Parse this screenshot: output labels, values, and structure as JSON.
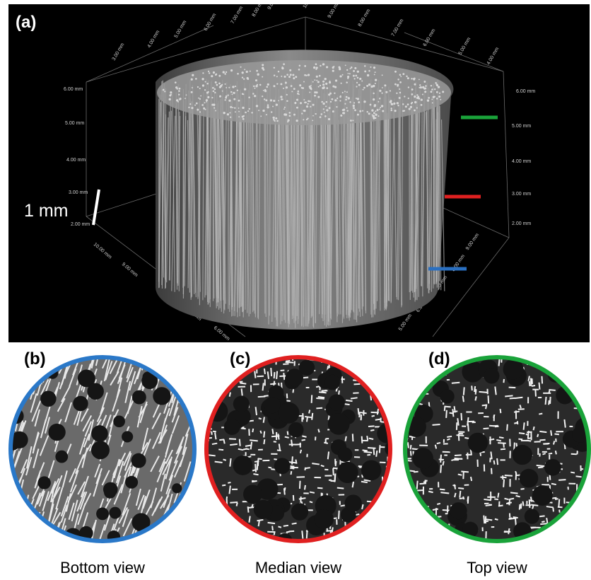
{
  "panel_a": {
    "label": "(a)",
    "scale_bar_text": "1 mm",
    "axis_ticks_left": [
      "6.00 mm",
      "5.00 mm",
      "4.00 mm",
      "3.00 mm",
      "2.00 mm"
    ],
    "axis_ticks_right": [
      "6.00 mm",
      "5.00 mm",
      "4.00 mm",
      "3.00 mm",
      "2.00 mm"
    ],
    "axis_ticks_top": [
      "3.00 mm",
      "4.00 mm",
      "5.00 mm",
      "6.00 mm",
      "7.00 mm",
      "8.00 mm",
      "9.00 mm",
      "10.00 mm",
      "9.00 mm",
      "8.00 mm",
      "7.00 mm",
      "6.00 mm",
      "5.00 mm",
      "4.00 mm"
    ],
    "axis_ticks_bottom_left": [
      "10.00 mm",
      "9.00 mm",
      "8.00 mm",
      "7.00 mm",
      "6.00 mm"
    ],
    "axis_ticks_bottom_right": [
      "9.00 mm",
      "8.00 mm",
      "7.00 mm",
      "6.00 mm",
      "5.00 mm"
    ],
    "markers": [
      {
        "name": "top",
        "color": "#1aa33a"
      },
      {
        "name": "median",
        "color": "#e02020"
      },
      {
        "name": "bottom",
        "color": "#2a6fc0"
      }
    ]
  },
  "views": [
    {
      "label": "(b)",
      "caption": "Bottom view",
      "ring_color": "#2a78c8"
    },
    {
      "label": "(c)",
      "caption": "Median view",
      "ring_color": "#e02020"
    },
    {
      "label": "(d)",
      "caption": "Top view",
      "ring_color": "#1aa33a"
    }
  ]
}
